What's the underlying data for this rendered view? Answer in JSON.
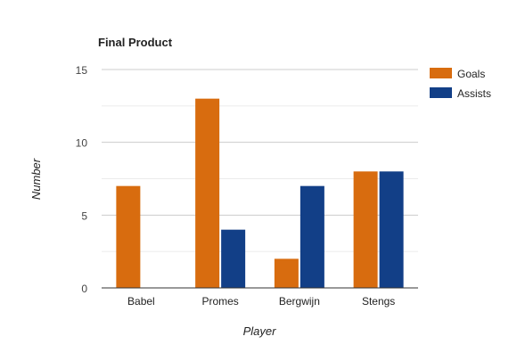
{
  "chart_data": {
    "type": "bar",
    "title": "Final Product",
    "xlabel": "Player",
    "ylabel": "Number",
    "categories": [
      "Babel",
      "Promes",
      "Bergwijn",
      "Stengs"
    ],
    "series": [
      {
        "name": "Goals",
        "color": "#d86c0f",
        "values": [
          7,
          13,
          2,
          8
        ]
      },
      {
        "name": "Assists",
        "color": "#123f87",
        "values": [
          0,
          4,
          7,
          8
        ]
      }
    ],
    "ylim": [
      0,
      15
    ],
    "yticks": [
      0,
      5,
      10,
      15
    ],
    "grid": true,
    "legend": "right"
  }
}
